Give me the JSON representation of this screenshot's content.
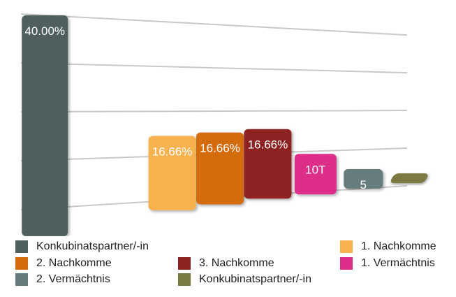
{
  "chart_data": {
    "type": "bar",
    "categories": [
      "Konkubinatspartner/-in",
      "1. Nachkomme",
      "2. Nachkomme",
      "3. Nachkomme",
      "1. Vermächtnis",
      "2. Vermächtnis",
      "Konkubinatspartner/-in"
    ],
    "values": [
      40.0,
      16.66,
      16.66,
      16.66,
      10,
      5,
      0.5
    ],
    "data_labels": [
      "40.00%",
      "16.66%",
      "16.66%",
      "16.66%",
      "10T",
      "5",
      ""
    ],
    "colors": [
      "#4f5e5e",
      "#f5b24f",
      "#d46c0e",
      "#8e2422",
      "#dd2e8a",
      "#667b7d",
      "#7b7a43"
    ],
    "ylim": [
      0,
      42
    ],
    "grid": true,
    "legend_position": "bottom"
  }
}
